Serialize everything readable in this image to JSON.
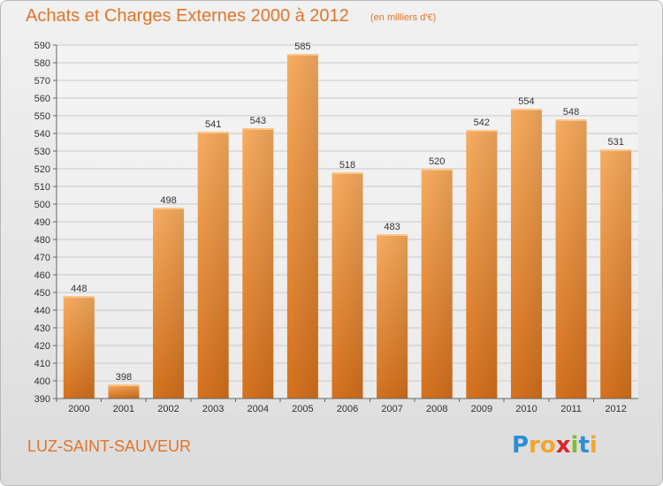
{
  "title": "Achats et Charges Externes 2000 à 2012",
  "subtitle": "(en milliers d'€)",
  "commune": "LUZ-SAINT-SAUVEUR",
  "logo": {
    "letters": [
      {
        "ch": "P",
        "color": "#2b8fd6"
      },
      {
        "ch": "r",
        "color": "#f2a531"
      },
      {
        "ch": "o",
        "color": "#f2a531"
      },
      {
        "ch": "x",
        "color": "#d8262b"
      },
      {
        "ch": "i",
        "color": "#7bbf2a"
      },
      {
        "ch": "t",
        "color": "#2b8fd6"
      },
      {
        "ch": "i",
        "color": "#f2a531"
      }
    ]
  },
  "colors": {
    "title": "#e0752a",
    "bar_light": "#f7a85a",
    "bar_dark": "#d8721c",
    "grid": "#cccccc"
  },
  "chart_data": {
    "type": "bar",
    "categories": [
      "2000",
      "2001",
      "2002",
      "2003",
      "2004",
      "2005",
      "2006",
      "2007",
      "2008",
      "2009",
      "2010",
      "2011",
      "2012"
    ],
    "values": [
      448,
      398,
      498,
      541,
      543,
      585,
      518,
      483,
      520,
      542,
      554,
      548,
      531
    ],
    "ylim": [
      390,
      590
    ],
    "ytick_step": 10,
    "grid": true,
    "title": "Achats et Charges Externes 2000 à 2012",
    "xlabel": "",
    "ylabel": ""
  }
}
